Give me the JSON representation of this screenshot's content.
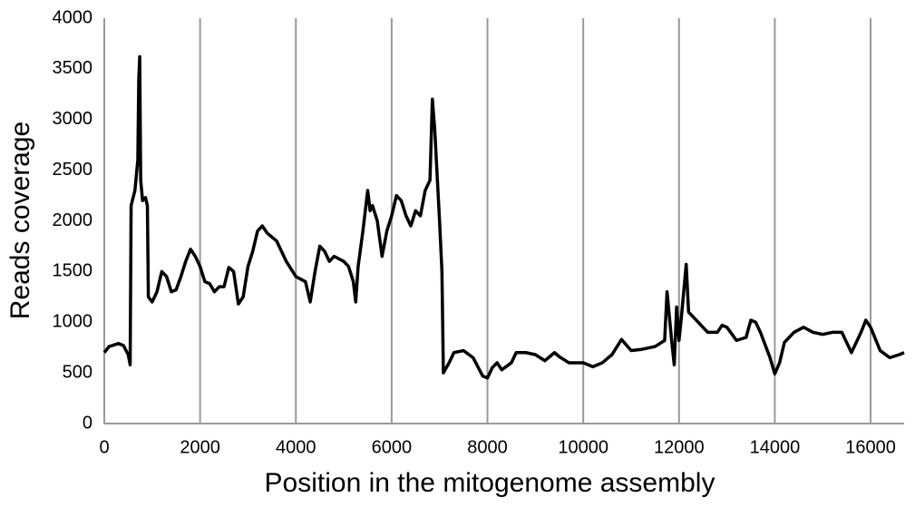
{
  "chart_data": {
    "type": "line",
    "xlabel": "Position in the mitogenome assembly",
    "ylabel": "Reads coverage",
    "xlim": [
      0,
      16700
    ],
    "ylim": [
      0,
      4000
    ],
    "xticks": [
      0,
      2000,
      4000,
      6000,
      8000,
      10000,
      12000,
      14000,
      16000
    ],
    "yticks": [
      0,
      500,
      1000,
      1500,
      2000,
      2500,
      3000,
      3500,
      4000
    ],
    "grid": "x",
    "series": [
      {
        "color": "#000000",
        "x": [
          0,
          100,
          300,
          400,
          500,
          540,
          560,
          640,
          700,
          720,
          740,
          760,
          800,
          860,
          900,
          920,
          1000,
          1100,
          1200,
          1300,
          1400,
          1500,
          1600,
          1700,
          1800,
          1900,
          2000,
          2100,
          2200,
          2300,
          2400,
          2500,
          2600,
          2700,
          2800,
          2900,
          3000,
          3100,
          3200,
          3300,
          3400,
          3600,
          3800,
          4000,
          4200,
          4300,
          4400,
          4500,
          4600,
          4700,
          4800,
          5000,
          5100,
          5200,
          5250,
          5300,
          5400,
          5500,
          5550,
          5600,
          5700,
          5800,
          5900,
          6000,
          6100,
          6200,
          6300,
          6400,
          6500,
          6600,
          6700,
          6800,
          6850,
          6900,
          7000,
          7050,
          7080,
          7200,
          7300,
          7500,
          7700,
          7900,
          8000,
          8100,
          8200,
          8300,
          8500,
          8600,
          8800,
          9000,
          9200,
          9400,
          9500,
          9700,
          10000,
          10200,
          10400,
          10600,
          10800,
          11000,
          11200,
          11500,
          11700,
          11750,
          11850,
          11900,
          11950,
          12000,
          12050,
          12150,
          12200,
          12400,
          12600,
          12800,
          12900,
          13000,
          13200,
          13400,
          13500,
          13600,
          13700,
          13900,
          14000,
          14100,
          14200,
          14400,
          14600,
          14800,
          15000,
          15200,
          15400,
          15600,
          15800,
          15900,
          16000,
          16200,
          16400,
          16600,
          16700
        ],
        "values": [
          700,
          760,
          790,
          770,
          680,
          580,
          2150,
          2300,
          2600,
          3400,
          3620,
          2400,
          2200,
          2230,
          2150,
          1250,
          1200,
          1300,
          1500,
          1450,
          1300,
          1320,
          1450,
          1600,
          1720,
          1650,
          1550,
          1400,
          1380,
          1300,
          1350,
          1350,
          1540,
          1500,
          1180,
          1250,
          1550,
          1700,
          1900,
          1950,
          1880,
          1800,
          1600,
          1450,
          1400,
          1200,
          1500,
          1750,
          1700,
          1600,
          1650,
          1600,
          1550,
          1400,
          1200,
          1550,
          1900,
          2300,
          2100,
          2150,
          2000,
          1650,
          1900,
          2050,
          2250,
          2200,
          2050,
          1950,
          2100,
          2050,
          2300,
          2400,
          3200,
          2900,
          2000,
          1500,
          500,
          600,
          700,
          720,
          650,
          470,
          450,
          550,
          600,
          530,
          600,
          700,
          700,
          680,
          620,
          700,
          660,
          600,
          600,
          560,
          600,
          680,
          830,
          720,
          730,
          760,
          820,
          1300,
          800,
          580,
          1150,
          820,
          1050,
          1570,
          1100,
          1000,
          900,
          900,
          970,
          950,
          820,
          850,
          1020,
          1000,
          900,
          650,
          490,
          600,
          800,
          900,
          950,
          900,
          880,
          900,
          900,
          700,
          900,
          1020,
          950,
          720,
          650,
          680,
          700
        ]
      }
    ]
  }
}
